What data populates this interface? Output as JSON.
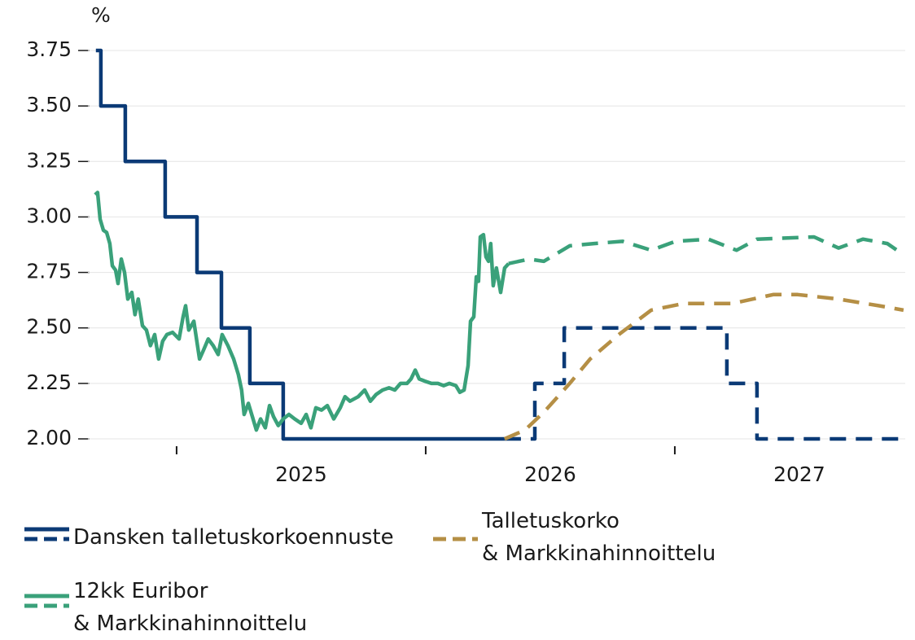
{
  "chart_data": {
    "type": "line",
    "y_label": "%",
    "xlim": [
      2024.644,
      2027.925
    ],
    "ylim": [
      2.0,
      3.75
    ],
    "xticks": [
      2025,
      2026,
      2027
    ],
    "yticks": [
      {
        "value": 2.0,
        "label": "2.00"
      },
      {
        "value": 2.25,
        "label": "2.25"
      },
      {
        "value": 2.5,
        "label": "2.50"
      },
      {
        "value": 2.75,
        "label": "2.75"
      },
      {
        "value": 3.0,
        "label": "3.00"
      },
      {
        "value": 3.25,
        "label": "3.25"
      },
      {
        "value": 3.5,
        "label": "3.50"
      },
      {
        "value": 3.75,
        "label": "3.75"
      }
    ],
    "grid": true,
    "series": [
      {
        "name": "Dansken talletuskorkoennuste",
        "color": "#0b3a76",
        "parts": [
          {
            "dashed": false,
            "x": [
              2024.676,
              2024.696,
              2024.696,
              2024.794,
              2024.794,
              2024.954,
              2024.954,
              2025.082,
              2025.082,
              2025.18,
              2025.18,
              2025.294,
              2025.294,
              2025.428,
              2025.428,
              2026.317
            ],
            "values": [
              3.75,
              3.75,
              3.5,
              3.5,
              3.25,
              3.25,
              3.0,
              3.0,
              2.75,
              2.75,
              2.5,
              2.5,
              2.25,
              2.25,
              2.0,
              2.0
            ]
          },
          {
            "dashed": true,
            "x": [
              2026.317,
              2026.438,
              2026.438,
              2026.556,
              2026.556,
              2027.209,
              2027.209,
              2027.33,
              2027.33,
              2027.918
            ],
            "values": [
              2.0,
              2.0,
              2.25,
              2.25,
              2.5,
              2.5,
              2.25,
              2.25,
              2.0,
              2.0
            ]
          }
        ]
      },
      {
        "name": "Talletuskorko\n& Markkinahinnoittelu",
        "color": "#b58f45",
        "parts": [
          {
            "dashed": true,
            "x": [
              2026.317,
              2026.399,
              2026.474,
              2026.578,
              2026.66,
              2026.775,
              2026.905,
              2027.036,
              2027.232,
              2027.395,
              2027.493,
              2027.657,
              2027.82,
              2027.918
            ],
            "values": [
              2.0,
              2.04,
              2.12,
              2.25,
              2.36,
              2.47,
              2.58,
              2.61,
              2.61,
              2.65,
              2.65,
              2.63,
              2.6,
              2.58
            ]
          }
        ]
      },
      {
        "name": "12kk Euribor\n& Markkinahinnoittelu",
        "color": "#3aa17a",
        "parts": [
          {
            "dashed": false,
            "x": [
              2024.673,
              2024.683,
              2024.693,
              2024.706,
              2024.719,
              2024.732,
              2024.742,
              2024.755,
              2024.765,
              2024.778,
              2024.791,
              2024.804,
              2024.82,
              2024.833,
              2024.846,
              2024.863,
              2024.879,
              2024.895,
              2024.912,
              2024.928,
              2024.944,
              2024.961,
              2024.984,
              2025.01,
              2025.026,
              2025.036,
              2025.049,
              2025.069,
              2025.092,
              2025.108,
              2025.127,
              2025.147,
              2025.167,
              2025.183,
              2025.206,
              2025.229,
              2025.248,
              2025.261,
              2025.271,
              2025.288,
              2025.304,
              2025.32,
              2025.337,
              2025.356,
              2025.373,
              2025.389,
              2025.408,
              2025.428,
              2025.451,
              2025.474,
              2025.5,
              2025.52,
              2025.539,
              2025.559,
              2025.582,
              2025.605,
              2025.631,
              2025.657,
              2025.676,
              2025.696,
              2025.729,
              2025.755,
              2025.778,
              2025.801,
              2025.827,
              2025.853,
              2025.876,
              2025.899,
              2025.925,
              2025.941,
              2025.958,
              2025.974,
              2025.997,
              2026.023,
              2026.049,
              2026.072,
              2026.095,
              2026.121,
              2026.137,
              2026.154,
              2026.17,
              2026.18,
              2026.193,
              2026.203,
              2026.212,
              2026.219,
              2026.232,
              2026.242,
              2026.252,
              2026.261,
              2026.271,
              2026.284,
              2026.301,
              2026.317,
              2026.333
            ],
            "values": [
              3.1,
              3.11,
              2.99,
              2.94,
              2.93,
              2.88,
              2.78,
              2.76,
              2.7,
              2.81,
              2.75,
              2.63,
              2.66,
              2.56,
              2.63,
              2.51,
              2.49,
              2.42,
              2.47,
              2.36,
              2.44,
              2.47,
              2.48,
              2.45,
              2.55,
              2.6,
              2.49,
              2.53,
              2.36,
              2.4,
              2.45,
              2.42,
              2.38,
              2.47,
              2.42,
              2.36,
              2.29,
              2.22,
              2.11,
              2.16,
              2.1,
              2.04,
              2.09,
              2.05,
              2.15,
              2.1,
              2.06,
              2.09,
              2.11,
              2.09,
              2.07,
              2.11,
              2.05,
              2.14,
              2.13,
              2.15,
              2.09,
              2.14,
              2.19,
              2.17,
              2.19,
              2.22,
              2.17,
              2.2,
              2.22,
              2.23,
              2.22,
              2.25,
              2.25,
              2.27,
              2.31,
              2.27,
              2.26,
              2.25,
              2.25,
              2.24,
              2.25,
              2.24,
              2.21,
              2.22,
              2.33,
              2.53,
              2.55,
              2.73,
              2.71,
              2.91,
              2.92,
              2.82,
              2.8,
              2.88,
              2.69,
              2.77,
              2.66,
              2.77,
              2.79
            ]
          },
          {
            "dashed": true,
            "x": [
              2026.333,
              2026.415,
              2026.474,
              2026.578,
              2026.676,
              2026.791,
              2026.905,
              2027.003,
              2027.134,
              2027.248,
              2027.33,
              2027.559,
              2027.657,
              2027.755,
              2027.853,
              2027.918
            ],
            "values": [
              2.79,
              2.81,
              2.8,
              2.87,
              2.88,
              2.89,
              2.85,
              2.89,
              2.9,
              2.85,
              2.9,
              2.91,
              2.86,
              2.9,
              2.88,
              2.83
            ]
          }
        ]
      }
    ]
  }
}
